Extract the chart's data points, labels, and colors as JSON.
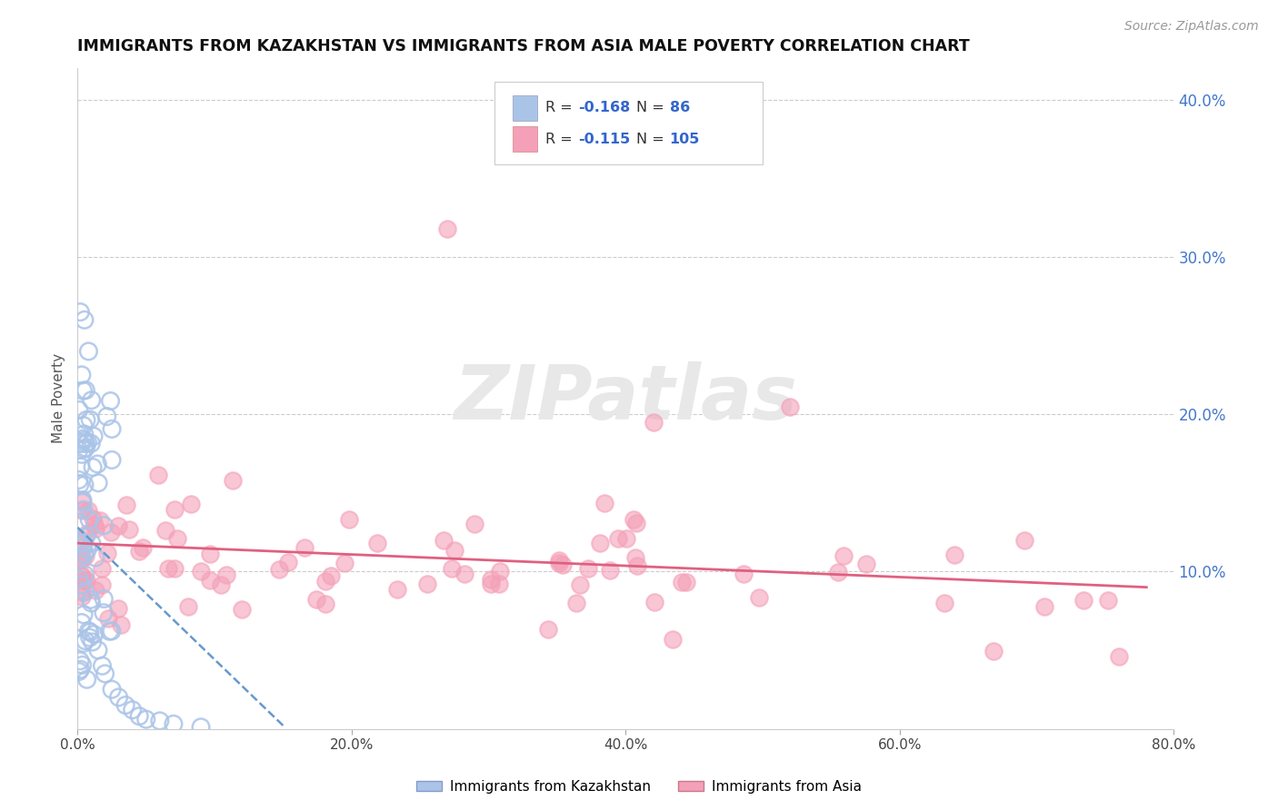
{
  "title": "IMMIGRANTS FROM KAZAKHSTAN VS IMMIGRANTS FROM ASIA MALE POVERTY CORRELATION CHART",
  "source": "Source: ZipAtlas.com",
  "ylabel": "Male Poverty",
  "xlim": [
    0.0,
    0.8
  ],
  "ylim": [
    0.0,
    0.42
  ],
  "xtick_labels": [
    "0.0%",
    "20.0%",
    "40.0%",
    "60.0%",
    "80.0%"
  ],
  "xtick_vals": [
    0.0,
    0.2,
    0.4,
    0.6,
    0.8
  ],
  "ytick_vals": [
    0.1,
    0.2,
    0.3,
    0.4
  ],
  "ytick_right_labels": [
    "10.0%",
    "20.0%",
    "30.0%",
    "40.0%"
  ],
  "color_kaz": "#aac4e8",
  "color_asia": "#f4a0b8",
  "color_kaz_line": "#6699cc",
  "color_asia_line": "#e06080",
  "background_color": "#ffffff",
  "grid_color": "#cccccc",
  "watermark_color": "#e8e8e8"
}
